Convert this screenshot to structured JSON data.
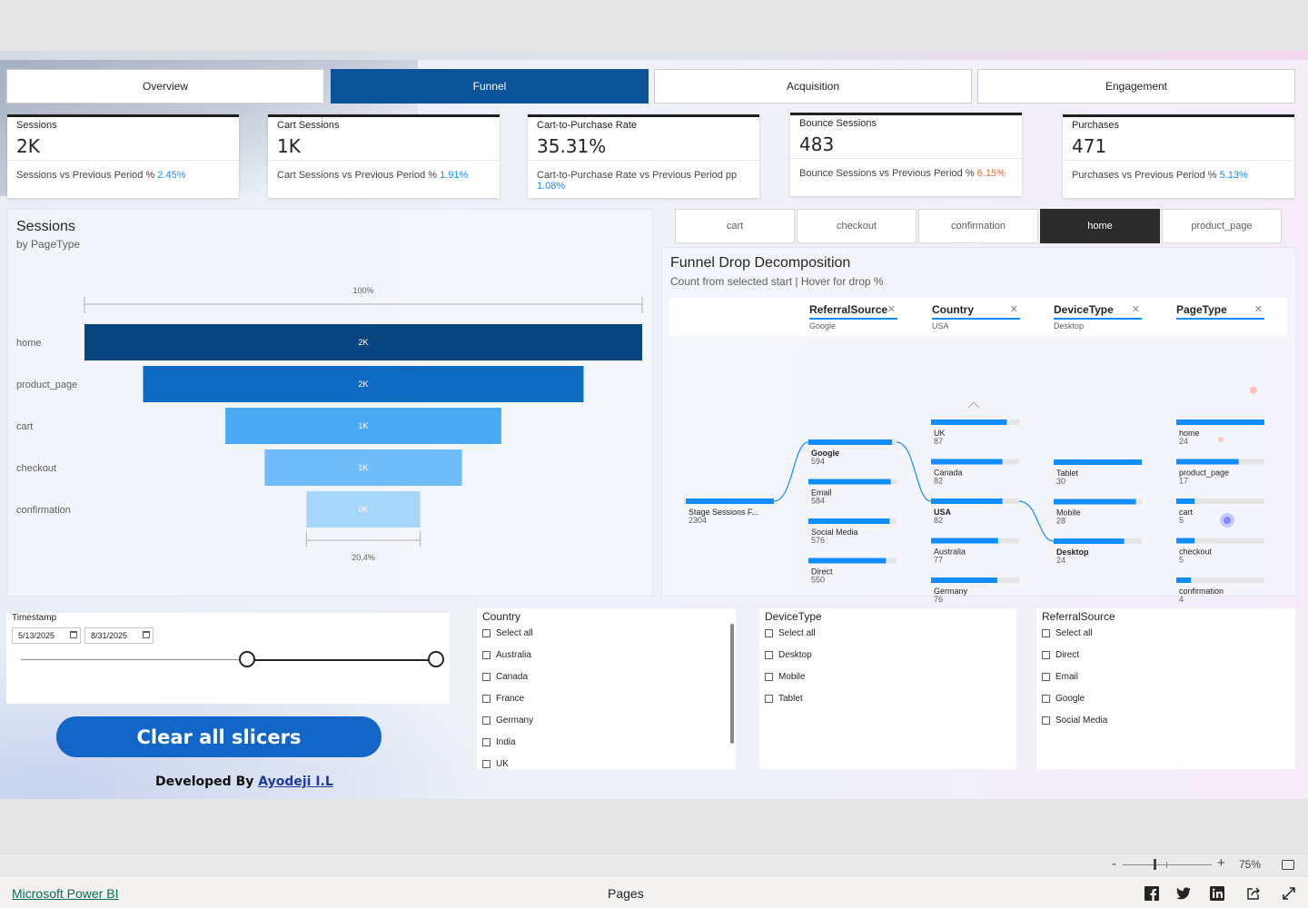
{
  "nav": {
    "tabs": [
      "Overview",
      "Funnel",
      "Acquisition",
      "Engagement"
    ],
    "active": "Funnel"
  },
  "kpis": [
    {
      "label": "Sessions",
      "value": "2K",
      "compare": "Sessions vs Previous Period % ",
      "pct": "2.45%",
      "pct_color": "#118dff"
    },
    {
      "label": "Cart Sessions",
      "value": "1K",
      "compare": "Cart Sessions vs Previous Period % ",
      "pct": "1.91%",
      "pct_color": "#118dff"
    },
    {
      "label": "Cart-to-Purchase Rate",
      "value": "35.31%",
      "compare": "Cart-to-Purchase Rate vs Previous Period pp ",
      "pct": "1.08%",
      "pct_color": "#118dff"
    },
    {
      "label": "Bounce Sessions",
      "value": "483",
      "compare": "Bounce Sessions vs Previous Period % ",
      "pct": "6.15%",
      "pct_color": "#e66c37"
    },
    {
      "label": "Purchases",
      "value": "471",
      "compare": "Purchases vs Previous Period % ",
      "pct": "5.13%",
      "pct_color": "#118dff"
    }
  ],
  "sessions_panel": {
    "title": "Sessions",
    "subtitle": "by PageType"
  },
  "chart_data": {
    "type": "bar",
    "subtype": "funnel",
    "title": "Sessions",
    "subtitle": "by PageType",
    "categories": [
      "home",
      "product_page",
      "cart",
      "checkout",
      "confirmation"
    ],
    "values": [
      2304,
      1820,
      1140,
      815,
      470
    ],
    "data_labels": [
      "2K",
      "2K",
      "1K",
      "1K",
      "0K"
    ],
    "colors": [
      "#08447e",
      "#0f6ac4",
      "#49a9f5",
      "#6fbcf8",
      "#a7d6fb"
    ],
    "top_percent_label": "100%",
    "bottom_percent_label": "20.4%"
  },
  "stage_buttons": {
    "items": [
      "cart",
      "checkout",
      "confirmation",
      "home",
      "product_page"
    ],
    "active": "home"
  },
  "decomp": {
    "title": "Funnel Drop Decomposition",
    "subtitle": "Count from selected start | Hover for drop %",
    "headers": [
      {
        "name": "ReferralSource",
        "value": "Google"
      },
      {
        "name": "Country",
        "value": "USA"
      },
      {
        "name": "DeviceType",
        "value": "Desktop"
      },
      {
        "name": "PageType",
        "value": ""
      }
    ],
    "root": {
      "label": "Stage Sessions F...",
      "value": "2304"
    },
    "referral": [
      {
        "label": "Google",
        "value": "594",
        "bold": true
      },
      {
        "label": "Email",
        "value": "584"
      },
      {
        "label": "Social Media",
        "value": "576"
      },
      {
        "label": "Direct",
        "value": "550"
      }
    ],
    "country": [
      {
        "label": "UK",
        "value": "87"
      },
      {
        "label": "Canada",
        "value": "82"
      },
      {
        "label": "USA",
        "value": "82",
        "bold": true
      },
      {
        "label": "Australia",
        "value": "77"
      },
      {
        "label": "Germany",
        "value": "76"
      }
    ],
    "device": [
      {
        "label": "Tablet",
        "value": "30"
      },
      {
        "label": "Mobile",
        "value": "28"
      },
      {
        "label": "Desktop",
        "value": "24",
        "bold": true
      }
    ],
    "pagetype": [
      {
        "label": "home",
        "value": "24"
      },
      {
        "label": "product_page",
        "value": "17"
      },
      {
        "label": "cart",
        "value": "5"
      },
      {
        "label": "checkout",
        "value": "5"
      },
      {
        "label": "confirmation",
        "value": "4"
      }
    ]
  },
  "timestamp_slicer": {
    "title": "Timestamp",
    "start": "5/13/2025",
    "end": "8/31/2025"
  },
  "country_slicer": {
    "title": "Country",
    "items": [
      "Select all",
      "Australia",
      "Canada",
      "France",
      "Germany",
      "India",
      "UK"
    ]
  },
  "device_slicer": {
    "title": "DeviceType",
    "items": [
      "Select all",
      "Desktop",
      "Mobile",
      "Tablet"
    ]
  },
  "referral_slicer": {
    "title": "ReferralSource",
    "items": [
      "Select all",
      "Direct",
      "Email",
      "Google",
      "Social Media"
    ]
  },
  "clear_button": "Clear all slicers",
  "developer": {
    "prefix": "Developed By ",
    "name": "Ayodeji I.L"
  },
  "zoom": {
    "minus": "-",
    "plus": "+",
    "level": "75%"
  },
  "footer": {
    "brand": "Microsoft Power BI",
    "pages": "Pages"
  },
  "icons": [
    "facebook-icon",
    "twitter-icon",
    "linkedin-icon",
    "share-icon",
    "expand-icon",
    "fit-page-icon",
    "calendar-icon",
    "close-icon",
    "chevron-up-icon"
  ]
}
